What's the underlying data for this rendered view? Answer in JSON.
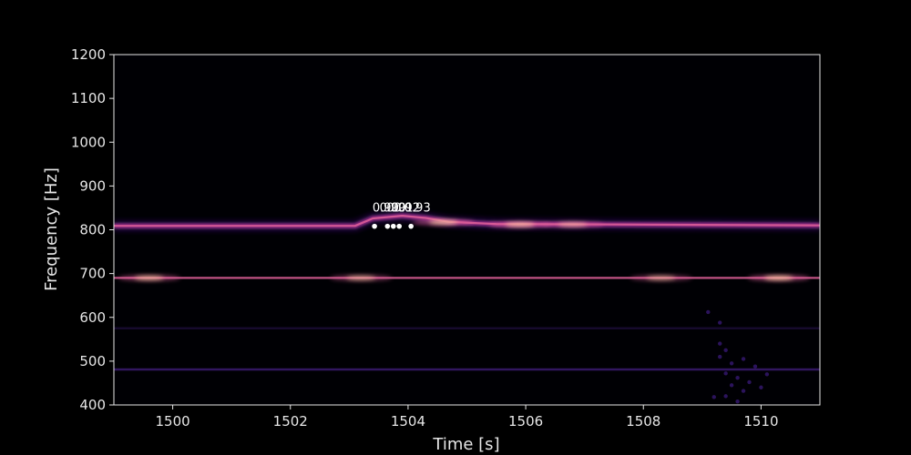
{
  "chart_data": {
    "type": "heatmap",
    "title": "",
    "xlabel": "Time [s]",
    "ylabel": "Frequency [Hz]",
    "xlim": [
      1499.0,
      1511.0
    ],
    "ylim": [
      400,
      1200
    ],
    "xticks": [
      1500,
      1502,
      1504,
      1506,
      1508,
      1510
    ],
    "yticks": [
      400,
      500,
      600,
      700,
      800,
      900,
      1000,
      1100,
      1200
    ],
    "grid": false,
    "colormap": "magma",
    "background": "#000000",
    "frequency_bands": [
      {
        "path": [
          [
            1499.0,
            809
          ],
          [
            1503.1,
            809
          ],
          [
            1503.4,
            826
          ],
          [
            1503.9,
            832
          ],
          [
            1504.3,
            827
          ],
          [
            1504.7,
            818
          ],
          [
            1505.5,
            813
          ],
          [
            1507.5,
            812
          ],
          [
            1511.0,
            810
          ]
        ],
        "peaks": [
          [
            1504.6,
            817,
            0.95
          ],
          [
            1505.9,
            812,
            0.9
          ],
          [
            1506.8,
            812,
            0.7
          ]
        ],
        "intensity": 0.6
      },
      {
        "path": [
          [
            1499.0,
            690
          ],
          [
            1511.0,
            690
          ]
        ],
        "peaks": [
          [
            1499.6,
            690,
            0.85
          ],
          [
            1503.2,
            690,
            0.75
          ],
          [
            1508.3,
            690,
            0.7
          ],
          [
            1510.3,
            690,
            0.95
          ]
        ],
        "intensity": 0.6
      },
      {
        "path": [
          [
            1499.0,
            481
          ],
          [
            1511.0,
            481
          ]
        ],
        "peaks": [],
        "intensity": 0.22
      },
      {
        "path": [
          [
            1499.0,
            575
          ],
          [
            1511.0,
            575
          ]
        ],
        "peaks": [],
        "intensity": 0.1
      }
    ],
    "noise_points": [
      [
        1509.3,
        540
      ],
      [
        1509.4,
        525
      ],
      [
        1509.3,
        510
      ],
      [
        1509.5,
        495
      ],
      [
        1509.4,
        472
      ],
      [
        1509.6,
        462
      ],
      [
        1509.5,
        445
      ],
      [
        1509.7,
        432
      ],
      [
        1509.4,
        420
      ],
      [
        1509.8,
        452
      ],
      [
        1509.2,
        418
      ],
      [
        1509.9,
        488
      ],
      [
        1509.3,
        588
      ],
      [
        1509.6,
        408
      ],
      [
        1510.1,
        470
      ],
      [
        1509.1,
        612
      ],
      [
        1510.0,
        440
      ],
      [
        1509.7,
        505
      ]
    ],
    "markers": [
      {
        "x": 1503.43,
        "y": 808
      },
      {
        "x": 1503.65,
        "y": 808
      },
      {
        "x": 1503.75,
        "y": 808
      },
      {
        "x": 1503.85,
        "y": 808
      },
      {
        "x": 1504.05,
        "y": 808
      }
    ],
    "annotations": [
      {
        "text": "0.90",
        "x": 1503.62,
        "y": 842
      },
      {
        "text": "0.90",
        "x": 1503.74,
        "y": 842
      },
      {
        "text": "0.91",
        "x": 1503.86,
        "y": 842
      },
      {
        "text": "0.92",
        "x": 1503.98,
        "y": 842
      },
      {
        "text": "0.93",
        "x": 1504.16,
        "y": 842
      }
    ],
    "colors": {
      "axis": "#e6e6e6",
      "marker": "#ffffff",
      "band_glow": "#3b1477",
      "band_mid": "#8c2a81",
      "band_core": "#e0609a",
      "band_hot": "#ffdca0"
    }
  }
}
